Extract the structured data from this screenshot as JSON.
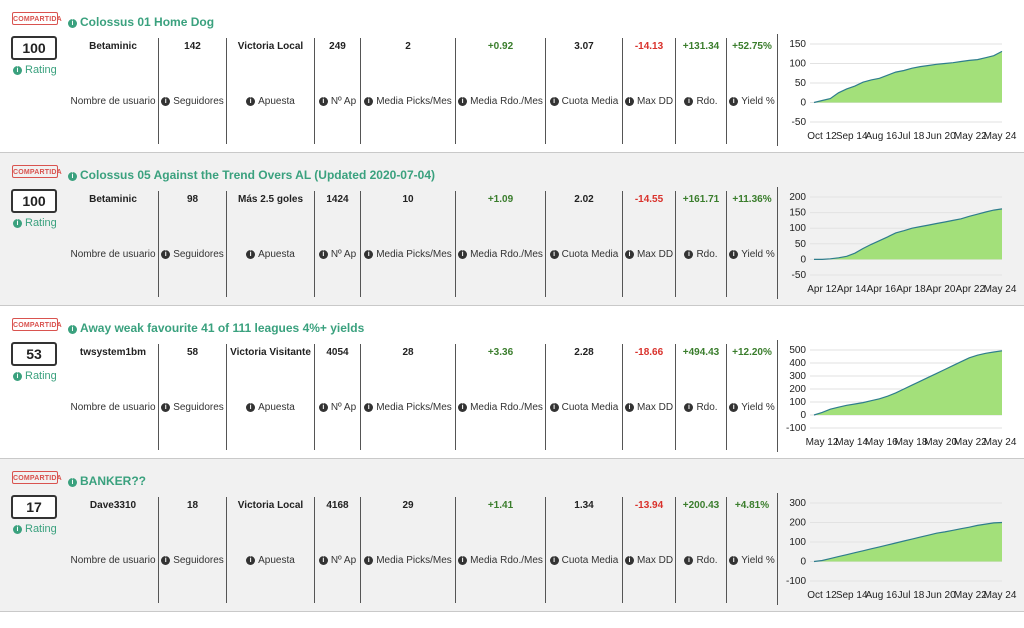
{
  "badge_label": "COMPARTIDA",
  "rating_label": "Rating",
  "column_labels": {
    "user": "Nombre de usuario",
    "followers": "Seguidores",
    "bet": "Apuesta",
    "n_bets": "Nº Ap",
    "picks_month": "Media Picks/Mes",
    "return_month": "Media Rdo./Mes",
    "avg_odds": "Cuota Media",
    "max_dd": "Max DD",
    "profit": "Rdo.",
    "yield": "Yield %"
  },
  "colors": {
    "accent": "#3aa17e",
    "positive": "#3a7d2c",
    "negative": "#d9312b",
    "chart_fill": "#a3e07a",
    "chart_line": "#2e7d8c"
  },
  "systems": [
    {
      "title": "Colossus 01 Home Dog",
      "rating": "100",
      "user": "Betaminic",
      "followers": "142",
      "bet": "Victoria Local",
      "n_bets": "249",
      "picks_month": "2",
      "return_month": "+0.92",
      "avg_odds": "3.07",
      "max_dd": "-14.13",
      "profit": "+131.34",
      "yield": "+52.75%"
    },
    {
      "title": "Colossus 05 Against the Trend Overs AL (Updated 2020-07-04)",
      "rating": "100",
      "user": "Betaminic",
      "followers": "98",
      "bet": "Más 2.5 goles",
      "n_bets": "1424",
      "picks_month": "10",
      "return_month": "+1.09",
      "avg_odds": "2.02",
      "max_dd": "-14.55",
      "profit": "+161.71",
      "yield": "+11.36%"
    },
    {
      "title": "Away weak favourite 41 of 111 leagues 4%+ yields",
      "rating": "53",
      "user": "twsystem1bm",
      "followers": "58",
      "bet": "Victoria Visitante",
      "n_bets": "4054",
      "picks_month": "28",
      "return_month": "+3.36",
      "avg_odds": "2.28",
      "max_dd": "-18.66",
      "profit": "+494.43",
      "yield": "+12.20%"
    },
    {
      "title": "BANKER??",
      "rating": "17",
      "user": "Dave3310",
      "followers": "18",
      "bet": "Victoria Local",
      "n_bets": "4168",
      "picks_month": "29",
      "return_month": "+1.41",
      "avg_odds": "1.34",
      "max_dd": "-13.94",
      "profit": "+200.43",
      "yield": "+4.81%"
    }
  ],
  "chart_data": [
    {
      "type": "area",
      "x_ticks": [
        "Oct 12",
        "Sep 14",
        "Aug 16",
        "Jul 18",
        "Jun 20",
        "May 22",
        "May 24"
      ],
      "y_ticks": [
        "150",
        "100",
        "50",
        "0",
        "-50"
      ],
      "ylim": [
        -50,
        150
      ],
      "values": [
        0,
        5,
        10,
        25,
        35,
        42,
        52,
        58,
        62,
        70,
        78,
        82,
        88,
        92,
        95,
        98,
        100,
        102,
        105,
        108,
        110,
        115,
        120,
        131
      ]
    },
    {
      "type": "area",
      "x_ticks": [
        "Apr 12",
        "Apr 14",
        "Apr 16",
        "Apr 18",
        "Apr 20",
        "Apr 22",
        "May 24"
      ],
      "y_ticks": [
        "200",
        "150",
        "100",
        "50",
        "0",
        "-50"
      ],
      "ylim": [
        -50,
        200
      ],
      "values": [
        0,
        0,
        2,
        5,
        10,
        20,
        35,
        48,
        60,
        72,
        85,
        92,
        100,
        105,
        110,
        115,
        120,
        125,
        130,
        138,
        145,
        152,
        158,
        162
      ]
    },
    {
      "type": "area",
      "x_ticks": [
        "May 12",
        "May 14",
        "May 16",
        "May 18",
        "May 20",
        "May 22",
        "May 24"
      ],
      "y_ticks": [
        "500",
        "400",
        "300",
        "200",
        "100",
        "0",
        "-100"
      ],
      "ylim": [
        -100,
        500
      ],
      "values": [
        0,
        20,
        45,
        60,
        75,
        85,
        95,
        110,
        125,
        145,
        170,
        200,
        230,
        260,
        290,
        320,
        350,
        380,
        410,
        440,
        460,
        475,
        485,
        494
      ]
    },
    {
      "type": "area",
      "x_ticks": [
        "Oct 12",
        "Sep 14",
        "Aug 16",
        "Jul 18",
        "Jun 20",
        "May 22",
        "May 24"
      ],
      "y_ticks": [
        "300",
        "200",
        "100",
        "0",
        "-100"
      ],
      "ylim": [
        -100,
        300
      ],
      "values": [
        0,
        5,
        15,
        25,
        35,
        45,
        55,
        65,
        75,
        85,
        95,
        105,
        115,
        125,
        135,
        145,
        152,
        160,
        168,
        176,
        185,
        192,
        198,
        200
      ]
    }
  ]
}
